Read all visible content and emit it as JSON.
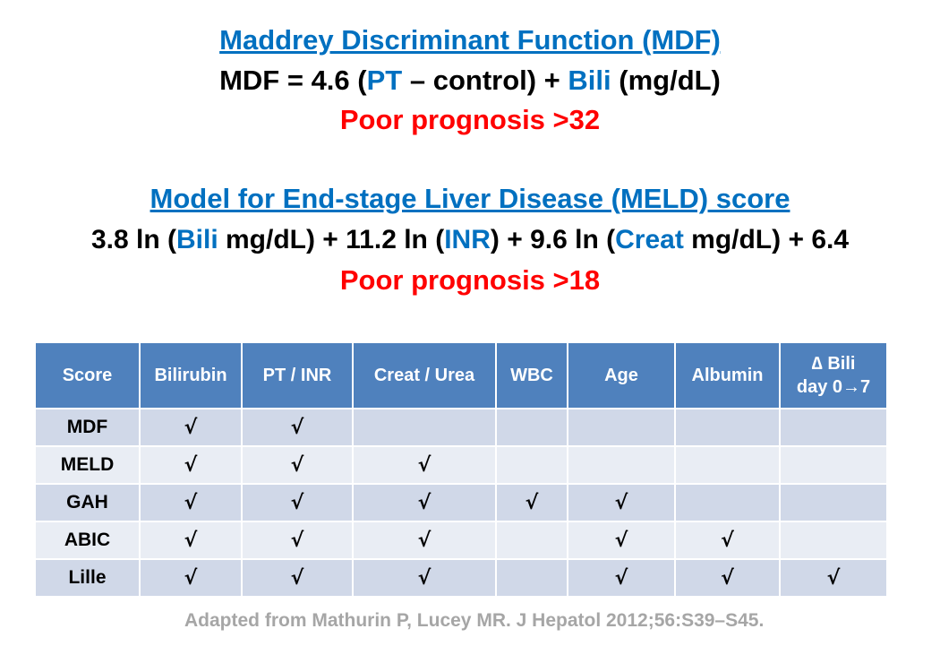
{
  "mdf": {
    "title": "Maddrey Discriminant Function (MDF)",
    "formula": {
      "part1": "MDF = 4.6 (",
      "pt": "PT",
      "part2": " – control) + ",
      "bili": "Bili",
      "part3": " (mg/dL)"
    },
    "prognosis": "Poor prognosis >32"
  },
  "meld": {
    "title": "Model for End-stage Liver Disease (MELD) score",
    "formula": {
      "part1": "3.8 ln (",
      "bili": "Bili",
      "part2": " mg/dL) + 11.2 ln (",
      "inr": "INR",
      "part3": ") + 9.6 ln (",
      "creat": "Creat",
      "part4": " mg/dL) + 6.4"
    },
    "prognosis": "Poor prognosis >18"
  },
  "table": {
    "headers": [
      "Score",
      "Bilirubin",
      "PT / INR",
      "Creat / Urea",
      "WBC",
      "Age",
      "Albumin",
      "∆ Bili",
      "day 0→7"
    ],
    "rows": [
      {
        "score": "MDF",
        "cells": [
          "√",
          "√",
          "",
          "",
          "",
          "",
          ""
        ]
      },
      {
        "score": "MELD",
        "cells": [
          "√",
          "√",
          "√",
          "",
          "",
          "",
          ""
        ]
      },
      {
        "score": "GAH",
        "cells": [
          "√",
          "√",
          "√",
          "√",
          "√",
          "",
          ""
        ]
      },
      {
        "score": "ABIC",
        "cells": [
          "√",
          "√",
          "√",
          "",
          "√",
          "√",
          ""
        ]
      },
      {
        "score": "Lille",
        "cells": [
          "√",
          "√",
          "√",
          "",
          "√",
          "√",
          "√"
        ]
      }
    ]
  },
  "citation": "Adapted from Mathurin P, Lucey MR. J Hepatol 2012;56:S39–S45.",
  "colors": {
    "accent_blue": "#0070c0",
    "warning_red": "#ff0000",
    "header_bg": "#4f81bd",
    "row_dark": "#d0d8e8",
    "row_light": "#e9edf4",
    "citation_gray": "#a6a6a6"
  }
}
